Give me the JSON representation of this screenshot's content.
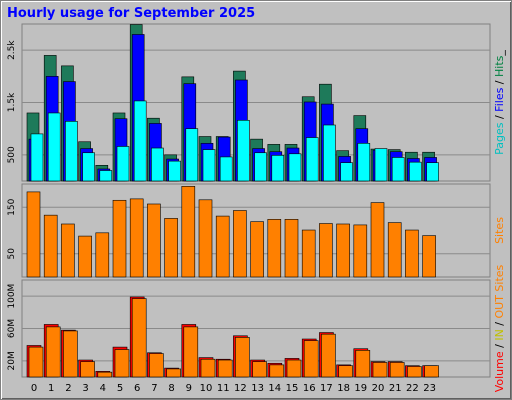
{
  "chart_data": {
    "title": "Hourly usage for September 2025",
    "type": "bar",
    "categories": [
      "0",
      "1",
      "2",
      "3",
      "4",
      "5",
      "6",
      "7",
      "8",
      "9",
      "10",
      "11",
      "12",
      "13",
      "14",
      "15",
      "16",
      "17",
      "18",
      "19",
      "20",
      "21",
      "22",
      "23"
    ],
    "panels": [
      {
        "name": "top",
        "ylim": [
          0,
          3000
        ],
        "yticks": [
          "500",
          "1.5k",
          "2.5k"
        ],
        "ytick_values": [
          500,
          1500,
          2500
        ],
        "legend_vertical": [
          {
            "text": "Pages",
            "color": "#00c0c0"
          },
          {
            "text": " / ",
            "color": "#000000"
          },
          {
            "text": "Files",
            "color": "#0000ff"
          },
          {
            "text": " / ",
            "color": "#000000"
          },
          {
            "text": "Hits",
            "color": "#008040"
          },
          {
            "text": "_",
            "color": "#000000"
          }
        ],
        "series": [
          {
            "name": "Hits",
            "color": "#1e7a5a",
            "values": [
              1300,
              2400,
              2200,
              750,
              300,
              1300,
              2990,
              1200,
              500,
              1990,
              850,
              850,
              2100,
              800,
              700,
              700,
              1610,
              1850,
              580,
              1250,
              610,
              600,
              550,
              550
            ]
          },
          {
            "name": "Files",
            "color": "#0000ff",
            "values": [
              800,
              2000,
              1900,
              620,
              230,
              1190,
              2800,
              1100,
              420,
              1860,
              720,
              840,
              1930,
              620,
              560,
              630,
              1510,
              1470,
              470,
              1000,
              590,
              560,
              430,
              450
            ]
          },
          {
            "name": "Pages",
            "color": "#00ffff",
            "values": [
              900,
              1300,
              1140,
              540,
              200,
              660,
              1530,
              630,
              380,
              1000,
              600,
              460,
              1160,
              540,
              490,
              520,
              830,
              1070,
              350,
              720,
              620,
              450,
              360,
              350
            ]
          }
        ]
      },
      {
        "name": "middle",
        "ylim": [
          0,
          200
        ],
        "yticks": [
          "50",
          "150"
        ],
        "ytick_values": [
          50,
          150
        ],
        "legend_vertical": [
          {
            "text": "Sites",
            "color": "#ff8000"
          }
        ],
        "series": [
          {
            "name": "Sites",
            "color": "#ff8000",
            "values": [
              183,
              133,
              114,
              88,
              95,
              165,
              168,
              157,
              126,
              195,
              166,
              131,
              143,
              119,
              124,
              124,
              101,
              115,
              114,
              112,
              160,
              117,
              101,
              89
            ]
          }
        ]
      },
      {
        "name": "bottom",
        "ylim": [
          0,
          120
        ],
        "yticks": [
          "20M",
          "60M",
          "100M"
        ],
        "ytick_values": [
          20,
          60,
          100
        ],
        "legend_vertical": [
          {
            "text": "Volume",
            "color": "#ff0000"
          },
          {
            "text": " / ",
            "color": "#000000"
          },
          {
            "text": "IN",
            "color": "#c0c000"
          },
          {
            "text": " / ",
            "color": "#000000"
          },
          {
            "text": "OUT",
            "color": "#ff8000"
          },
          {
            "text": " ",
            "color": "#000000"
          },
          {
            "text": "Sites",
            "color": "#ff8000"
          }
        ],
        "series": [
          {
            "name": "Volume",
            "color": "#ff0000",
            "values": [
              39,
              65,
              58,
              21,
              7,
              37,
              99,
              30,
              11,
              65,
              24,
              22,
              51,
              21,
              17,
              23,
              47,
              55,
              15,
              35,
              19,
              19,
              14,
              14
            ]
          },
          {
            "name": "OUT",
            "color": "#ff8000",
            "values": [
              37,
              62,
              57,
              19,
              6,
              34,
              97,
              29,
              10,
              62,
              22,
              21,
              49,
              19,
              15,
              21,
              45,
              53,
              14,
              33,
              18,
              18,
              13,
              14
            ]
          }
        ]
      }
    ]
  }
}
